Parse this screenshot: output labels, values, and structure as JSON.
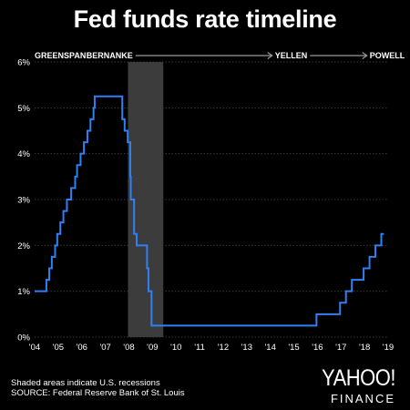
{
  "chart_data": {
    "type": "line",
    "title": "Fed funds rate timeline",
    "x_tick_labels": [
      "'04",
      "'05",
      "'06",
      "'07",
      "'08",
      "'09",
      "'10",
      "'11",
      "'12",
      "'13",
      "'14",
      "'15",
      "'16",
      "'17",
      "'18",
      "'19"
    ],
    "y_tick_labels": [
      "0%",
      "1%",
      "2%",
      "3%",
      "4%",
      "5%",
      "6%"
    ],
    "ylim": [
      0,
      6
    ],
    "xlim": [
      2004,
      2019
    ],
    "grid": "horizontal",
    "recession_band": {
      "start": 2007.96,
      "end": 2009.46
    },
    "eras": [
      {
        "name": "GREENSPAN",
        "start": 2004,
        "end": 2006.08
      },
      {
        "name": "BERNANKE",
        "start": 2006.08,
        "end": 2014.08
      },
      {
        "name": "YELLEN",
        "start": 2014.08,
        "end": 2018.1
      },
      {
        "name": "POWELL",
        "start": 2018.1,
        "end": 2019.5
      }
    ],
    "series": [
      {
        "color": "#2f7ff5",
        "steps": [
          [
            2004.0,
            1.0
          ],
          [
            2004.5,
            1.25
          ],
          [
            2004.62,
            1.5
          ],
          [
            2004.73,
            1.75
          ],
          [
            2004.87,
            2.0
          ],
          [
            2004.96,
            2.25
          ],
          [
            2005.09,
            2.5
          ],
          [
            2005.22,
            2.75
          ],
          [
            2005.37,
            3.0
          ],
          [
            2005.55,
            3.25
          ],
          [
            2005.72,
            3.5
          ],
          [
            2005.8,
            3.75
          ],
          [
            2005.95,
            4.0
          ],
          [
            2006.09,
            4.25
          ],
          [
            2006.24,
            4.5
          ],
          [
            2006.37,
            4.75
          ],
          [
            2006.5,
            5.0
          ],
          [
            2006.55,
            5.25
          ],
          [
            2007.72,
            4.75
          ],
          [
            2007.82,
            4.5
          ],
          [
            2007.95,
            4.25
          ],
          [
            2008.06,
            3.5
          ],
          [
            2008.08,
            3.0
          ],
          [
            2008.22,
            2.25
          ],
          [
            2008.33,
            2.0
          ],
          [
            2008.77,
            1.5
          ],
          [
            2008.83,
            1.0
          ],
          [
            2008.96,
            0.25
          ],
          [
            2015.96,
            0.5
          ],
          [
            2016.96,
            0.75
          ],
          [
            2017.21,
            1.0
          ],
          [
            2017.46,
            1.25
          ],
          [
            2017.96,
            1.5
          ],
          [
            2018.21,
            1.75
          ],
          [
            2018.46,
            2.0
          ],
          [
            2018.71,
            2.25
          ],
          [
            2018.82,
            2.25
          ]
        ]
      }
    ],
    "footnote_lines": [
      "Shaded areas indicate U.S. recessions",
      "SOURCE: Federal Reserve Bank of St. Louis"
    ]
  },
  "brand": {
    "name": "YAHOO!",
    "sub": "FINANCE"
  },
  "colors": {
    "background": "#000000",
    "line": "#2f7ff5",
    "recession": "#3c3c3c",
    "grid": "#3a3a3a",
    "text": "#ffffff",
    "era_arrow": "#9a9a9a"
  }
}
